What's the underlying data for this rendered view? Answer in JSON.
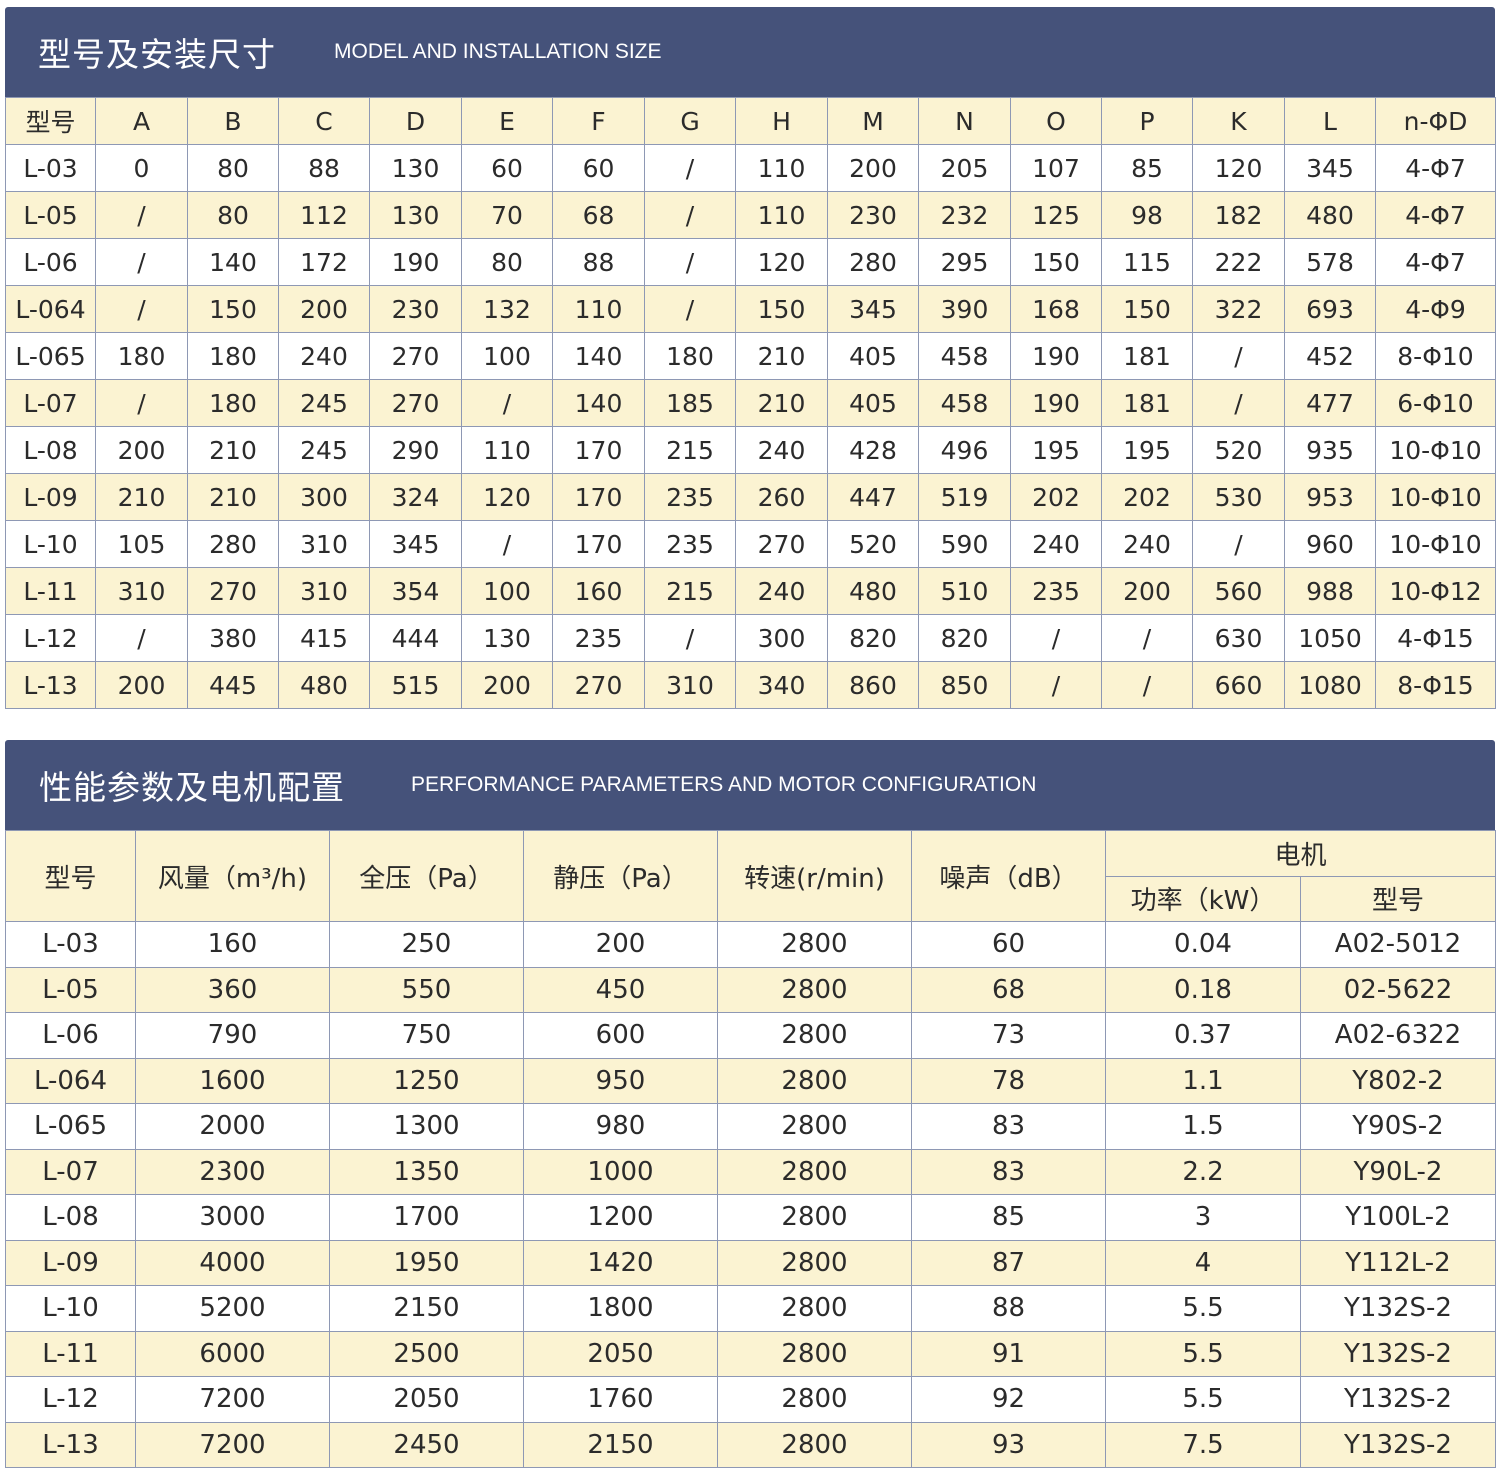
{
  "dimensions": {
    "title_zh": "型号及安装尺寸",
    "title_en": "MODEL AND INSTALLATION SIZE",
    "headers": [
      "型号",
      "A",
      "B",
      "C",
      "D",
      "E",
      "F",
      "G",
      "H",
      "M",
      "N",
      "O",
      "P",
      "K",
      "L",
      "n-ΦD"
    ],
    "rows": [
      [
        "L-03",
        "0",
        "80",
        "88",
        "130",
        "60",
        "60",
        "/",
        "110",
        "200",
        "205",
        "107",
        "85",
        "120",
        "345",
        "4-Φ7"
      ],
      [
        "L-05",
        "/",
        "80",
        "112",
        "130",
        "70",
        "68",
        "/",
        "110",
        "230",
        "232",
        "125",
        "98",
        "182",
        "480",
        "4-Φ7"
      ],
      [
        "L-06",
        "/",
        "140",
        "172",
        "190",
        "80",
        "88",
        "/",
        "120",
        "280",
        "295",
        "150",
        "115",
        "222",
        "578",
        "4-Φ7"
      ],
      [
        "L-064",
        "/",
        "150",
        "200",
        "230",
        "132",
        "110",
        "/",
        "150",
        "345",
        "390",
        "168",
        "150",
        "322",
        "693",
        "4-Φ9"
      ],
      [
        "L-065",
        "180",
        "180",
        "240",
        "270",
        "100",
        "140",
        "180",
        "210",
        "405",
        "458",
        "190",
        "181",
        "/",
        "452",
        "8-Φ10"
      ],
      [
        "L-07",
        "/",
        "180",
        "245",
        "270",
        "/",
        "140",
        "185",
        "210",
        "405",
        "458",
        "190",
        "181",
        "/",
        "477",
        "6-Φ10"
      ],
      [
        "L-08",
        "200",
        "210",
        "245",
        "290",
        "110",
        "170",
        "215",
        "240",
        "428",
        "496",
        "195",
        "195",
        "520",
        "935",
        "10-Φ10"
      ],
      [
        "L-09",
        "210",
        "210",
        "300",
        "324",
        "120",
        "170",
        "235",
        "260",
        "447",
        "519",
        "202",
        "202",
        "530",
        "953",
        "10-Φ10"
      ],
      [
        "L-10",
        "105",
        "280",
        "310",
        "345",
        "/",
        "170",
        "235",
        "270",
        "520",
        "590",
        "240",
        "240",
        "/",
        "960",
        "10-Φ10"
      ],
      [
        "L-11",
        "310",
        "270",
        "310",
        "354",
        "100",
        "160",
        "215",
        "240",
        "480",
        "510",
        "235",
        "200",
        "560",
        "988",
        "10-Φ12"
      ],
      [
        "L-12",
        "/",
        "380",
        "415",
        "444",
        "130",
        "235",
        "/",
        "300",
        "820",
        "820",
        "/",
        "/",
        "630",
        "1050",
        "4-Φ15"
      ],
      [
        "L-13",
        "200",
        "445",
        "480",
        "515",
        "200",
        "270",
        "310",
        "340",
        "860",
        "850",
        "/",
        "/",
        "660",
        "1080",
        "8-Φ15"
      ]
    ]
  },
  "performance": {
    "title_zh": "性能参数及电机配置",
    "title_en": "PERFORMANCE PARAMETERS AND MOTOR CONFIGURATION",
    "headers": {
      "model": "型号",
      "airflow": "风量（m³/h)",
      "total_pressure": "全压（Pa）",
      "static_pressure": "静压（Pa）",
      "speed": "转速(r/min)",
      "noise": "噪声（dB）",
      "motor": "电机",
      "motor_power": "功率（kW）",
      "motor_model": "型号"
    },
    "rows": [
      [
        "L-03",
        "160",
        "250",
        "200",
        "2800",
        "60",
        "0.04",
        "A02-5012"
      ],
      [
        "L-05",
        "360",
        "550",
        "450",
        "2800",
        "68",
        "0.18",
        "02-5622"
      ],
      [
        "L-06",
        "790",
        "750",
        "600",
        "2800",
        "73",
        "0.37",
        "A02-6322"
      ],
      [
        "L-064",
        "1600",
        "1250",
        "950",
        "2800",
        "78",
        "1.1",
        "Y802-2"
      ],
      [
        "L-065",
        "2000",
        "1300",
        "980",
        "2800",
        "83",
        "1.5",
        "Y90S-2"
      ],
      [
        "L-07",
        "2300",
        "1350",
        "1000",
        "2800",
        "83",
        "2.2",
        "Y90L-2"
      ],
      [
        "L-08",
        "3000",
        "1700",
        "1200",
        "2800",
        "85",
        "3",
        "Y100L-2"
      ],
      [
        "L-09",
        "4000",
        "1950",
        "1420",
        "2800",
        "87",
        "4",
        "Y112L-2"
      ],
      [
        "L-10",
        "5200",
        "2150",
        "1800",
        "2800",
        "88",
        "5.5",
        "Y132S-2"
      ],
      [
        "L-11",
        "6000",
        "2500",
        "2050",
        "2800",
        "91",
        "5.5",
        "Y132S-2"
      ],
      [
        "L-12",
        "7200",
        "2050",
        "1760",
        "2800",
        "92",
        "5.5",
        "Y132S-2"
      ],
      [
        "L-13",
        "7200",
        "2450",
        "2150",
        "2800",
        "93",
        "7.5",
        "Y132S-2"
      ]
    ]
  }
}
